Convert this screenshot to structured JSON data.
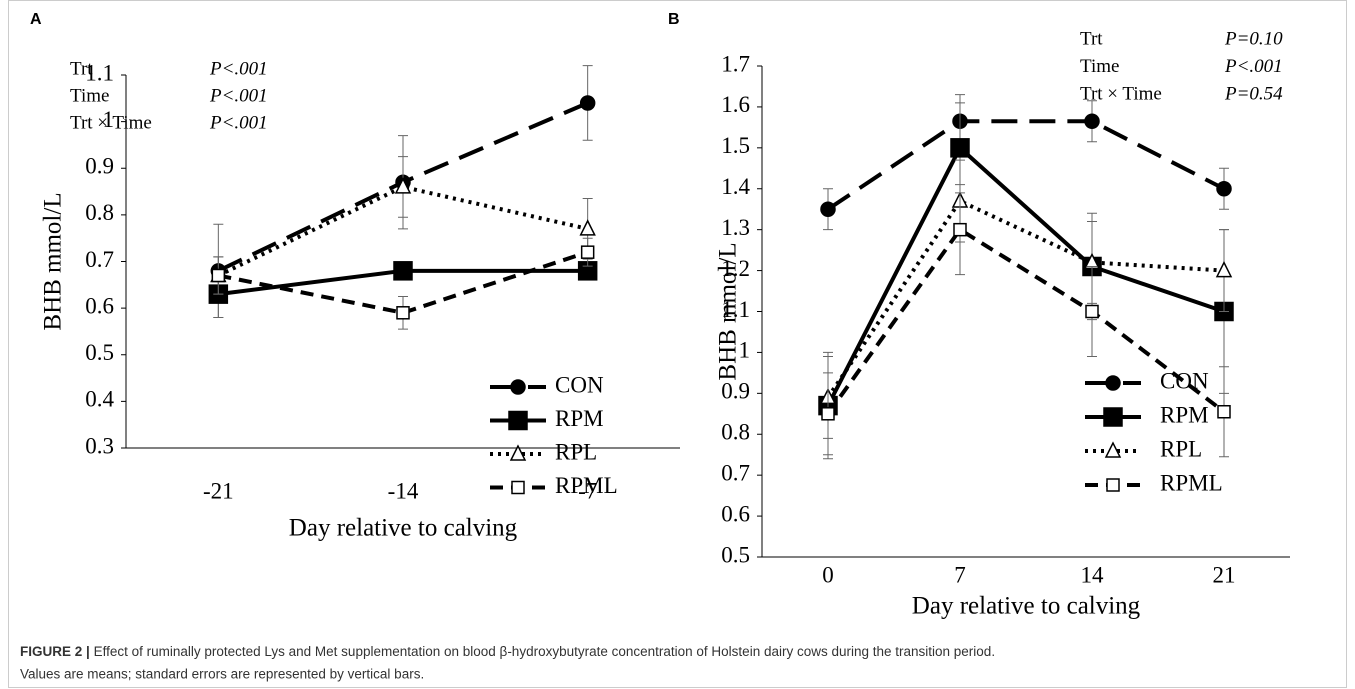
{
  "chart_data": [
    {
      "type": "line",
      "panel": "A",
      "xlabel": "Day relative to calving",
      "ylabel": "BHB mmol/L",
      "categories": [
        "-21",
        "-14",
        "-7"
      ],
      "ylim": [
        0.3,
        1.1
      ],
      "yticks": [
        0.3,
        0.4,
        0.5,
        0.6,
        0.7,
        0.8,
        0.9,
        1,
        1.1
      ],
      "annotations": [
        {
          "term": "Trt",
          "p": "P<.001"
        },
        {
          "term": "Time",
          "p": "P<.001"
        },
        {
          "term": "Trt × Time",
          "p": "P<.001"
        }
      ],
      "series": [
        {
          "name": "CON",
          "color": "#000000",
          "dash": "long-dash",
          "marker": "filled-circle",
          "values": [
            0.68,
            0.87,
            1.04
          ],
          "errors": [
            0.1,
            0.1,
            0.08
          ]
        },
        {
          "name": "RPM",
          "color": "#000000",
          "dash": "solid",
          "marker": "filled-square",
          "values": [
            0.63,
            0.68,
            0.68
          ],
          "errors": [
            0.05,
            0.01,
            0.01
          ]
        },
        {
          "name": "RPL",
          "color": "#000000",
          "dash": "dotted",
          "marker": "open-triangle",
          "values": [
            0.67,
            0.86,
            0.77
          ],
          "errors": [
            0.04,
            0.065,
            0.065
          ]
        },
        {
          "name": "RPML",
          "color": "#000000",
          "dash": "dashed",
          "marker": "open-square",
          "values": [
            0.67,
            0.59,
            0.72
          ],
          "errors": [
            0.04,
            0.035,
            0.03
          ]
        }
      ]
    },
    {
      "type": "line",
      "panel": "B",
      "xlabel": "Day relative to calving",
      "ylabel": "BHB mmol/L",
      "categories": [
        "0",
        "7",
        "14",
        "21"
      ],
      "ylim": [
        0.5,
        1.7
      ],
      "yticks": [
        0.5,
        0.6,
        0.7,
        0.8,
        0.9,
        1,
        1.1,
        1.2,
        1.3,
        1.4,
        1.5,
        1.6,
        1.7
      ],
      "annotations": [
        {
          "term": "Trt",
          "p": "P=0.10"
        },
        {
          "term": "Time",
          "p": "P<.001"
        },
        {
          "term": "Trt × Time",
          "p": "P=0.54"
        }
      ],
      "series": [
        {
          "name": "CON",
          "color": "#000000",
          "dash": "long-dash",
          "marker": "filled-circle",
          "values": [
            1.35,
            1.565,
            1.565,
            1.4
          ],
          "errors": [
            0.05,
            0.065,
            0.05,
            0.05
          ]
        },
        {
          "name": "RPM",
          "color": "#000000",
          "dash": "solid",
          "marker": "filled-square",
          "values": [
            0.87,
            1.5,
            1.21,
            1.1
          ],
          "errors": [
            0.13,
            0.11,
            0.13,
            0.2
          ]
        },
        {
          "name": "RPL",
          "color": "#000000",
          "dash": "dotted",
          "marker": "open-triangle",
          "values": [
            0.89,
            1.37,
            1.22,
            1.2
          ],
          "errors": [
            0.1,
            0.1,
            0.1,
            0.1
          ]
        },
        {
          "name": "RPML",
          "color": "#000000",
          "dash": "dashed",
          "marker": "open-square",
          "values": [
            0.85,
            1.3,
            1.1,
            0.855
          ],
          "errors": [
            0.1,
            0.11,
            0.11,
            0.11
          ]
        }
      ]
    }
  ],
  "caption": {
    "label": "FIGURE 2 |",
    "lines": [
      "Effect of ruminally protected Lys and Met supplementation on blood β-hydroxybutyrate concentration of Holstein dairy cows during the transition period.",
      "Values are means; standard errors are represented by vertical bars."
    ]
  }
}
